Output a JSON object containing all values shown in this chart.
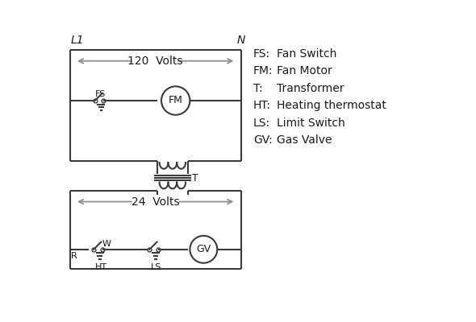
{
  "bg_color": "#ffffff",
  "line_color": "#3a3a3a",
  "arrow_color": "#909090",
  "text_color": "#1a1a1a",
  "legend": [
    [
      "FS:",
      "Fan Switch"
    ],
    [
      "FM:",
      "Fan Motor"
    ],
    [
      "T:",
      "Transformer"
    ],
    [
      "HT:",
      "Heating thermostat"
    ],
    [
      "LS:",
      "Limit Switch"
    ],
    [
      "GV:",
      "Gas Valve"
    ]
  ]
}
